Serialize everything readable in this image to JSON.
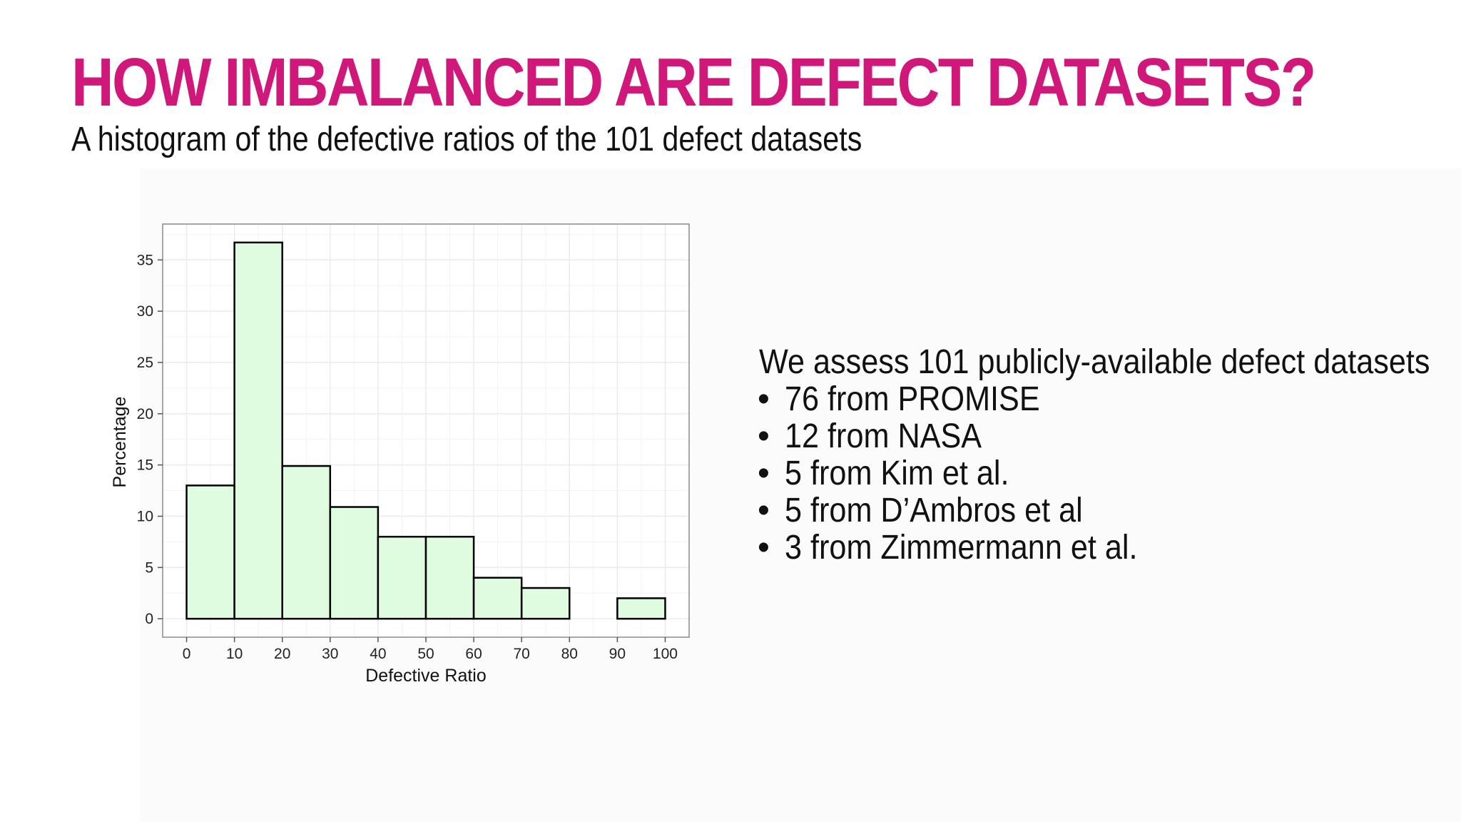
{
  "slide": {
    "title": "HOW IMBALANCED ARE DEFECT DATASETS?",
    "subtitle": "A histogram of the defective ratios of the 101 defect datasets",
    "title_color": "#d0177a"
  },
  "chart_data": {
    "type": "bar",
    "subtype": "histogram",
    "bins": [
      [
        0,
        10
      ],
      [
        10,
        20
      ],
      [
        20,
        30
      ],
      [
        30,
        40
      ],
      [
        40,
        50
      ],
      [
        50,
        60
      ],
      [
        60,
        70
      ],
      [
        70,
        80
      ],
      [
        80,
        90
      ],
      [
        90,
        100
      ]
    ],
    "values": [
      13,
      36.7,
      14.9,
      10.9,
      8,
      8,
      4,
      3,
      0,
      2
    ],
    "x_ticks": [
      "0",
      "10",
      "20",
      "30",
      "40",
      "50",
      "60",
      "70",
      "80",
      "90",
      "100"
    ],
    "y_ticks": [
      "0",
      "5",
      "10",
      "15",
      "20",
      "25",
      "30",
      "35"
    ],
    "xlabel": "Defective Ratio",
    "ylabel": "Percentage",
    "xlim": [
      -5,
      105
    ],
    "ylim": [
      -1.8,
      38.5
    ],
    "grid": true,
    "bar_fill": "#e0fce0",
    "bar_stroke": "#000000",
    "panel_background": "#ffffff",
    "grid_color": "#ebebeb"
  },
  "info": {
    "intro": "We assess 101 publicly-available defect datasets",
    "bullet_symbol": "•",
    "items": [
      "76 from PROMISE",
      "12 from NASA",
      "5 from Kim et al.",
      "5 from D’Ambros et al",
      "3 from Zimmermann et al."
    ]
  }
}
